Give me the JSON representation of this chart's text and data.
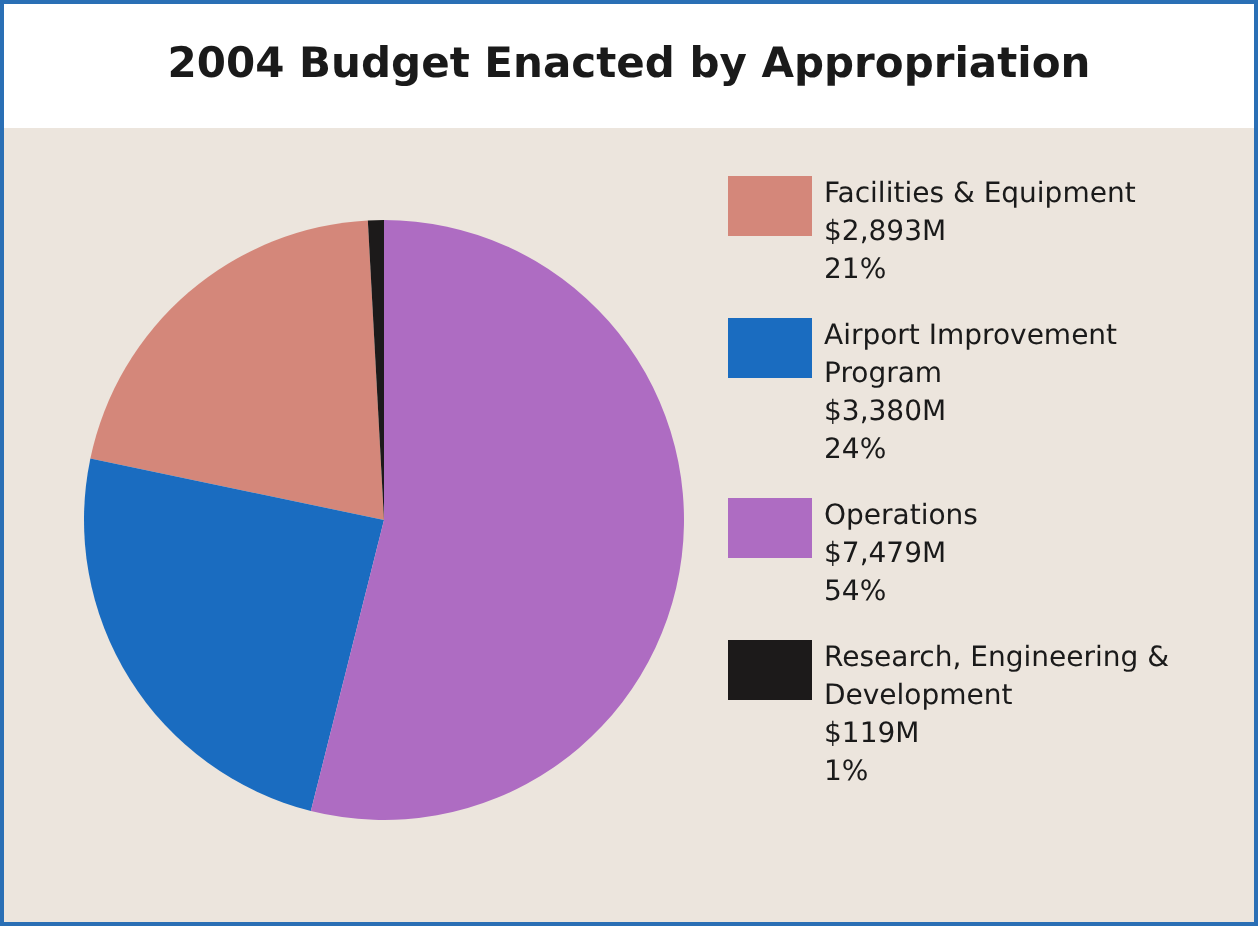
{
  "chart_data": {
    "type": "pie",
    "title": "2004 Budget Enacted by Appropriation",
    "categories": [
      "Facilities & Equipment",
      "Airport Improvement Program",
      "Operations",
      "Research, Engineering & Development"
    ],
    "values": [
      2893,
      3380,
      7479,
      119
    ],
    "value_labels": [
      "$2,893M",
      "$3,380M",
      "$7,479M",
      "$119M"
    ],
    "annotations": [
      "21%",
      "24%",
      "54%",
      "1%"
    ],
    "colors": [
      "#d4877a",
      "#1a6cc0",
      "#ae6cc2",
      "#1c1a1a"
    ],
    "legend": "right"
  }
}
